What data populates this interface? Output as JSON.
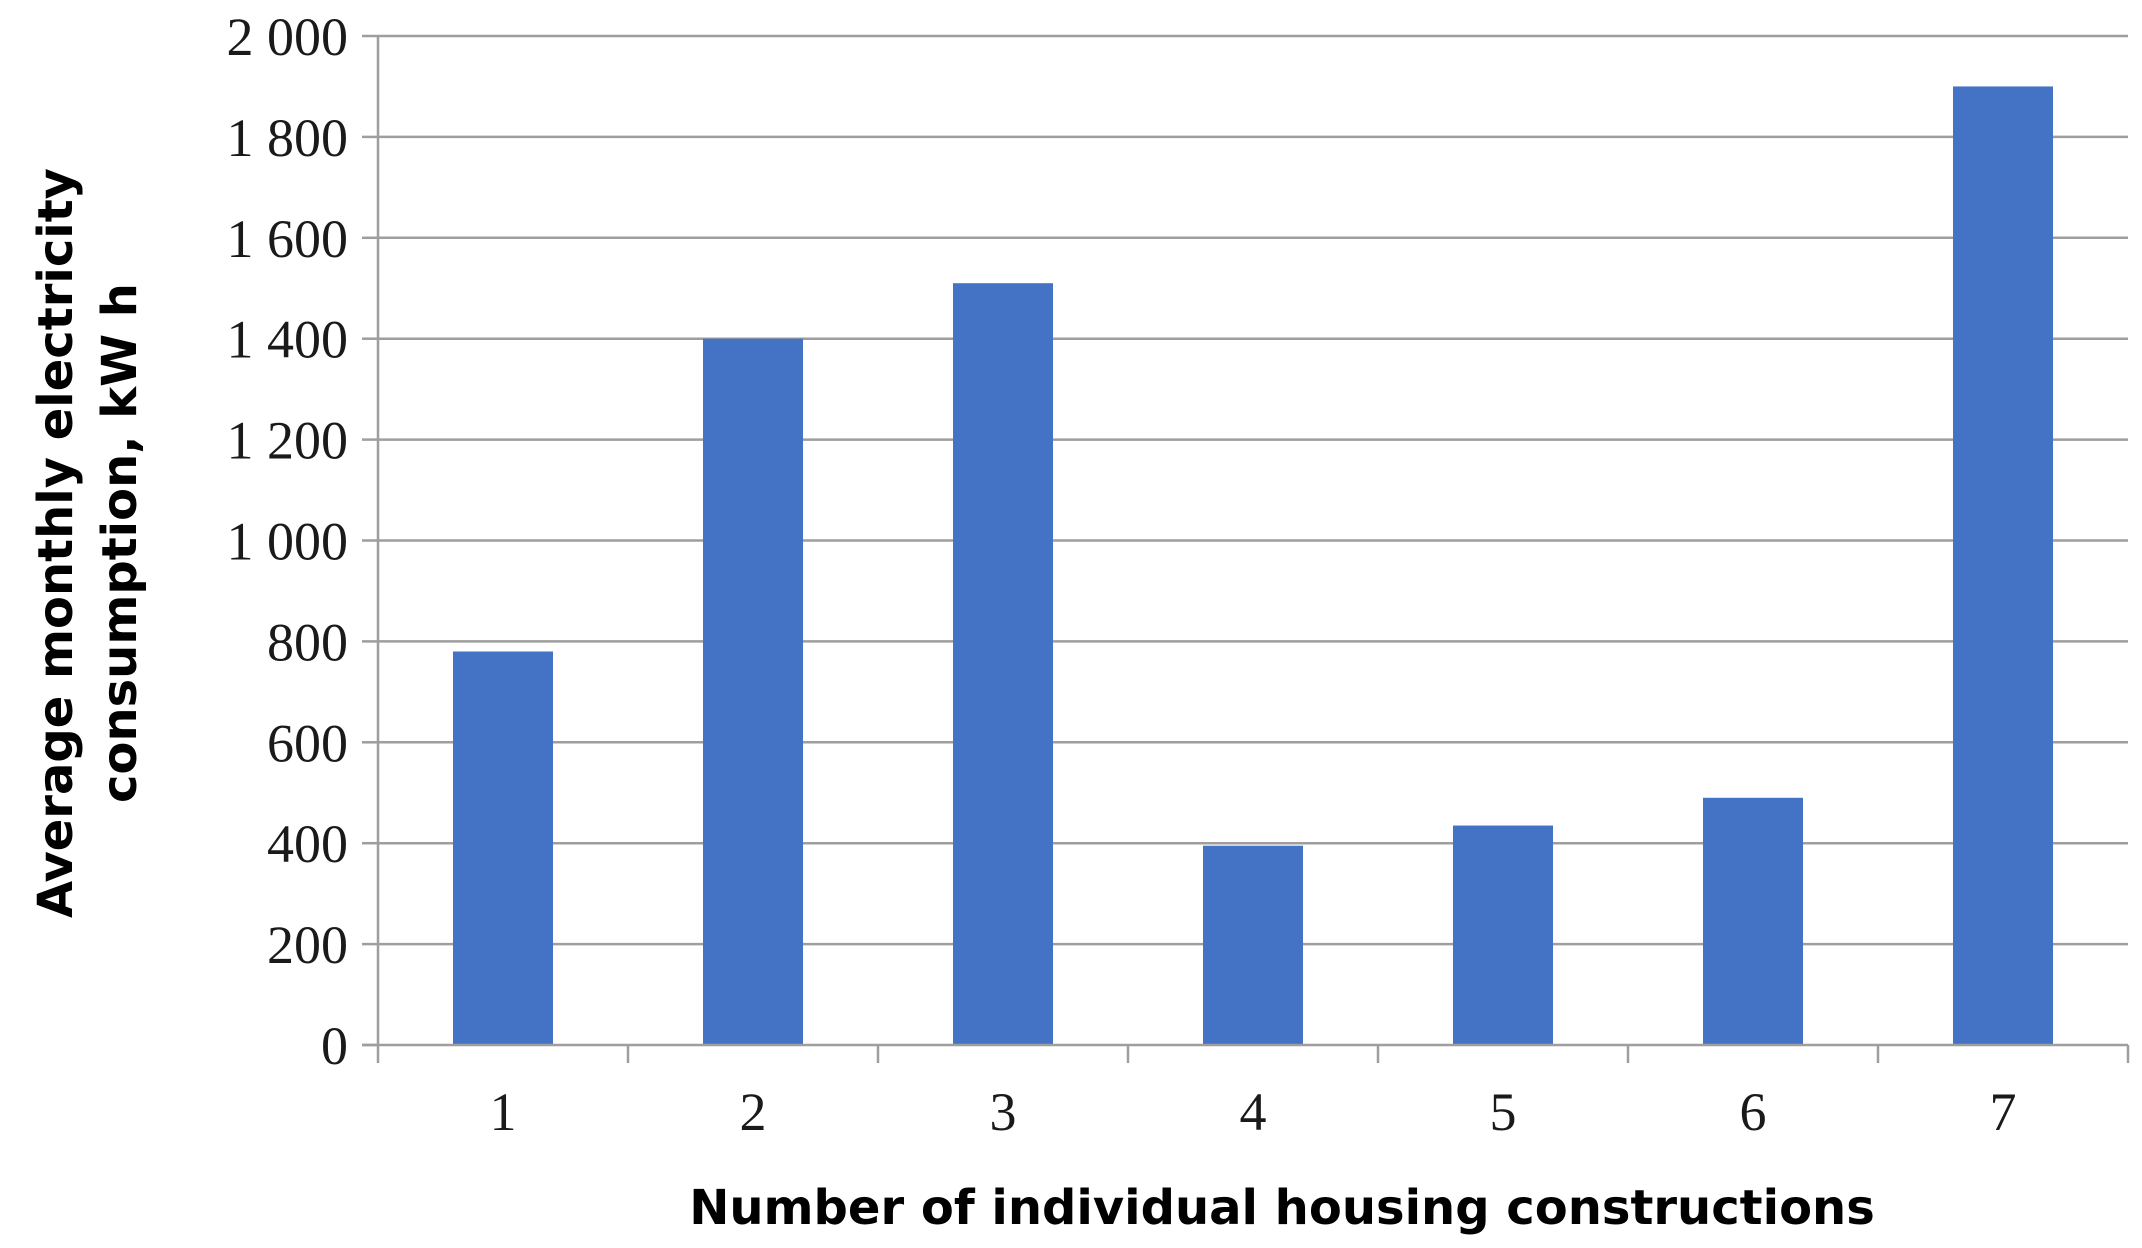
{
  "chart_data": {
    "type": "bar",
    "categories": [
      "1",
      "2",
      "3",
      "4",
      "5",
      "6",
      "7"
    ],
    "values": [
      780,
      1400,
      1510,
      395,
      435,
      490,
      1900
    ],
    "xlabel": "Number of individual housing constructions",
    "ylabel_lines": [
      "Average monthly electricity",
      "consumption, kW h"
    ],
    "ylim": [
      0,
      2000
    ],
    "yticks": [
      0,
      200,
      400,
      600,
      800,
      1000,
      1200,
      1400,
      1600,
      1800,
      2000
    ],
    "ytick_labels": [
      "0",
      "200",
      "400",
      "600",
      "800",
      "1 000",
      "1 200",
      "1 400",
      "1 600",
      "1 800",
      "2 000"
    ],
    "grid": "horizontal",
    "legend": "none",
    "bar_color": "#4472C4",
    "grid_color": "#9e9e9e"
  }
}
